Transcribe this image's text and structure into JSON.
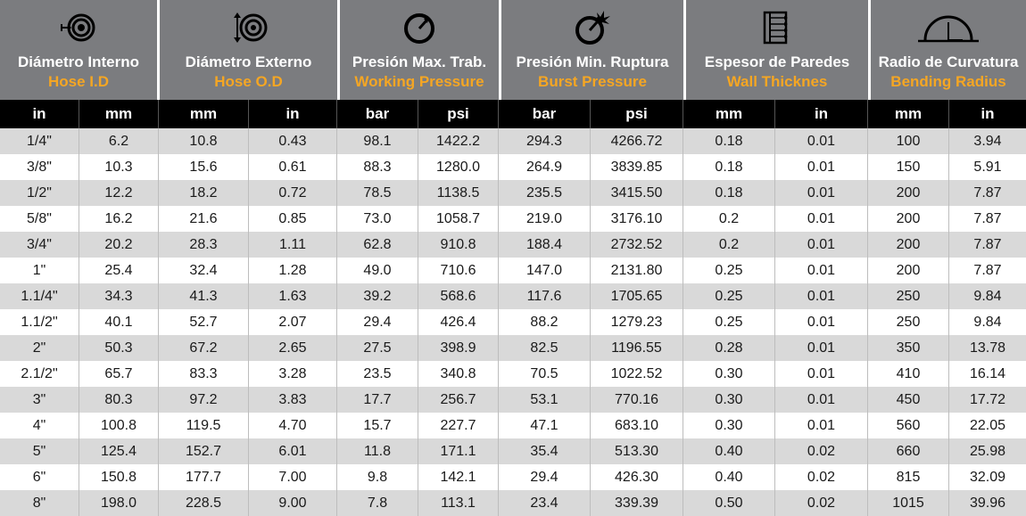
{
  "groups": [
    {
      "es": "Diámetro Interno",
      "en": "Hose I.D",
      "icon": "inner-diameter-icon"
    },
    {
      "es": "Diámetro Externo",
      "en": "Hose O.D",
      "icon": "outer-diameter-icon"
    },
    {
      "es": "Presión Max. Trab.",
      "en": "Working Pressure",
      "icon": "pressure-gauge-icon"
    },
    {
      "es": "Presión Min. Ruptura",
      "en": "Burst Pressure",
      "icon": "burst-gauge-icon"
    },
    {
      "es": "Espesor de Paredes",
      "en": "Wall Thicknes",
      "icon": "wall-thickness-icon"
    },
    {
      "es": "Radio de Curvatura",
      "en": "Bending Radius",
      "icon": "bending-radius-icon"
    }
  ],
  "units": [
    "in",
    "mm",
    "mm",
    "in",
    "bar",
    "psi",
    "bar",
    "psi",
    "mm",
    "in",
    "mm",
    "in"
  ],
  "rows": [
    [
      "1/4\"",
      "6.2",
      "10.8",
      "0.43",
      "98.1",
      "1422.2",
      "294.3",
      "4266.72",
      "0.18",
      "0.01",
      "100",
      "3.94"
    ],
    [
      "3/8\"",
      "10.3",
      "15.6",
      "0.61",
      "88.3",
      "1280.0",
      "264.9",
      "3839.85",
      "0.18",
      "0.01",
      "150",
      "5.91"
    ],
    [
      "1/2\"",
      "12.2",
      "18.2",
      "0.72",
      "78.5",
      "1138.5",
      "235.5",
      "3415.50",
      "0.18",
      "0.01",
      "200",
      "7.87"
    ],
    [
      "5/8\"",
      "16.2",
      "21.6",
      "0.85",
      "73.0",
      "1058.7",
      "219.0",
      "3176.10",
      "0.2",
      "0.01",
      "200",
      "7.87"
    ],
    [
      "3/4\"",
      "20.2",
      "28.3",
      "1.11",
      "62.8",
      "910.8",
      "188.4",
      "2732.52",
      "0.2",
      "0.01",
      "200",
      "7.87"
    ],
    [
      "1\"",
      "25.4",
      "32.4",
      "1.28",
      "49.0",
      "710.6",
      "147.0",
      "2131.80",
      "0.25",
      "0.01",
      "200",
      "7.87"
    ],
    [
      "1.1/4\"",
      "34.3",
      "41.3",
      "1.63",
      "39.2",
      "568.6",
      "117.6",
      "1705.65",
      "0.25",
      "0.01",
      "250",
      "9.84"
    ],
    [
      "1.1/2\"",
      "40.1",
      "52.7",
      "2.07",
      "29.4",
      "426.4",
      "88.2",
      "1279.23",
      "0.25",
      "0.01",
      "250",
      "9.84"
    ],
    [
      "2\"",
      "50.3",
      "67.2",
      "2.65",
      "27.5",
      "398.9",
      "82.5",
      "1196.55",
      "0.28",
      "0.01",
      "350",
      "13.78"
    ],
    [
      "2.1/2\"",
      "65.7",
      "83.3",
      "3.28",
      "23.5",
      "340.8",
      "70.5",
      "1022.52",
      "0.30",
      "0.01",
      "410",
      "16.14"
    ],
    [
      "3\"",
      "80.3",
      "97.2",
      "3.83",
      "17.7",
      "256.7",
      "53.1",
      "770.16",
      "0.30",
      "0.01",
      "450",
      "17.72"
    ],
    [
      "4\"",
      "100.8",
      "119.5",
      "4.70",
      "15.7",
      "227.7",
      "47.1",
      "683.10",
      "0.30",
      "0.01",
      "560",
      "22.05"
    ],
    [
      "5\"",
      "125.4",
      "152.7",
      "6.01",
      "11.8",
      "171.1",
      "35.4",
      "513.30",
      "0.40",
      "0.02",
      "660",
      "25.98"
    ],
    [
      "6\"",
      "150.8",
      "177.7",
      "7.00",
      "9.8",
      "142.1",
      "29.4",
      "426.30",
      "0.40",
      "0.02",
      "815",
      "32.09"
    ],
    [
      "8\"",
      "198.0",
      "228.5",
      "9.00",
      "7.8",
      "113.1",
      "23.4",
      "339.39",
      "0.50",
      "0.02",
      "1015",
      "39.96"
    ]
  ]
}
